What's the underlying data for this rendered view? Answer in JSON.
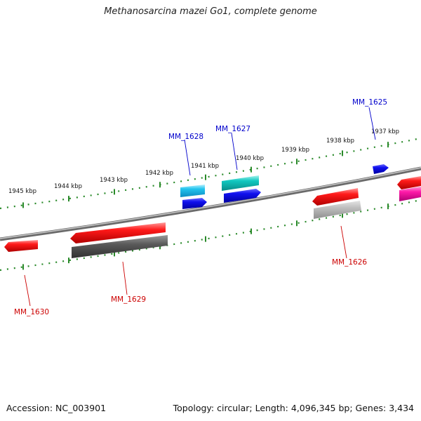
{
  "title": "Methanosarcina mazei Go1, complete genome",
  "footer": {
    "accession": "Accession: NC_003901",
    "summary": "Topology: circular; Length: 4,096,345 bp; Genes: 3,434"
  },
  "colors": {
    "tick": "#2a8a2a",
    "backbone": "#8a8a8a",
    "plus_label": "#0000cc",
    "minus_label": "#cc0000"
  },
  "kbp_labels": [
    "1945 kbp",
    "1944 kbp",
    "1943 kbp",
    "1942 kbp",
    "1941 kbp",
    "1940 kbp",
    "1939 kbp",
    "1938 kbp",
    "1937 kbp"
  ],
  "gene_labels": {
    "MM_1628": "MM_1628",
    "MM_1627": "MM_1627",
    "MM_1625": "MM_1625",
    "MM_1626": "MM_1626",
    "MM_1629": "MM_1629",
    "MM_1630": "MM_1630"
  }
}
